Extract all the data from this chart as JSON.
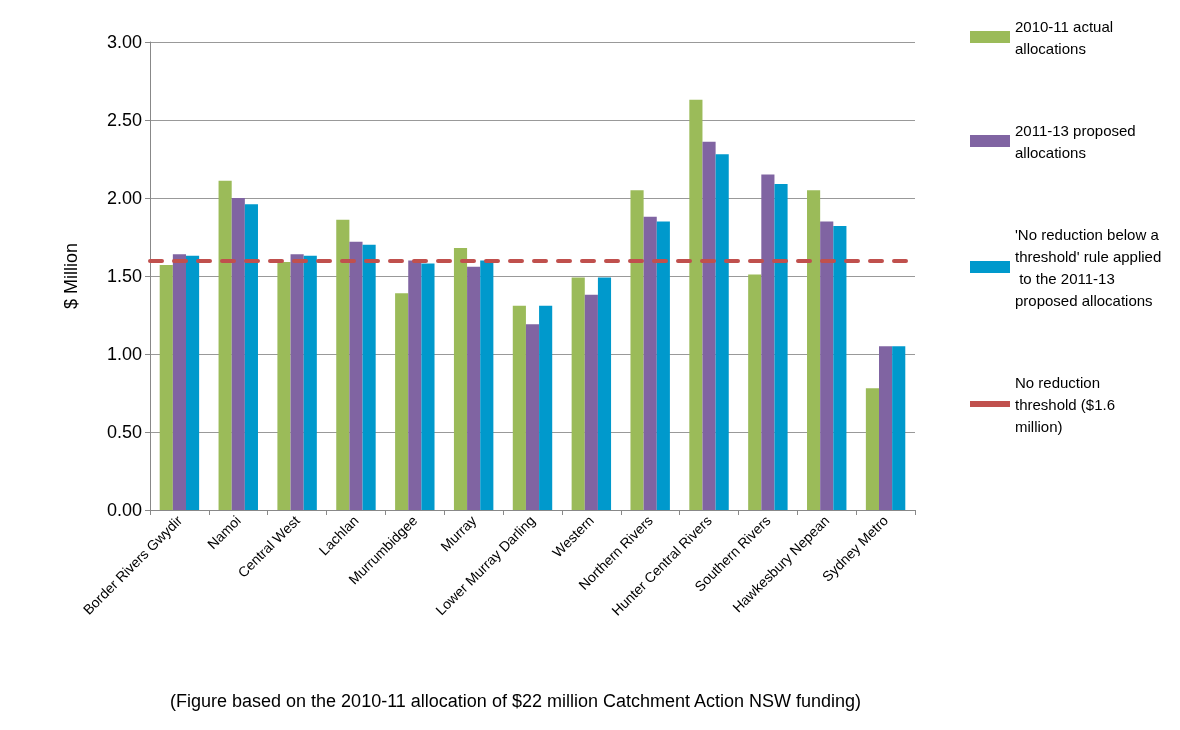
{
  "chart_data": {
    "type": "bar",
    "ylabel": "$ Million",
    "categories": [
      "Border Rivers Gwydir",
      "Namoi",
      "Central West",
      "Lachlan",
      "Murrumbidgee",
      "Murray",
      "Lower Murray Darling",
      "Western",
      "Northern Rivers",
      "Hunter Central Rivers",
      "Southern Rivers",
      "Hawkesbury Nepean",
      "Sydney Metro"
    ],
    "series": [
      {
        "name": "2010-11 actual allocations",
        "color": "#9bbb59",
        "values": [
          1.57,
          2.11,
          1.59,
          1.86,
          1.39,
          1.68,
          1.31,
          1.49,
          2.05,
          2.63,
          1.51,
          2.05,
          0.78
        ]
      },
      {
        "name": "2011-13 proposed allocations",
        "color": "#8064a2",
        "values": [
          1.64,
          2.0,
          1.64,
          1.72,
          1.6,
          1.56,
          1.19,
          1.38,
          1.88,
          2.36,
          2.15,
          1.85,
          1.05
        ]
      },
      {
        "name": "'No reduction below a threshold' rule applied to the 2011-13 proposed allocations",
        "color": "#0099cc",
        "values": [
          1.63,
          1.96,
          1.63,
          1.7,
          1.58,
          1.6,
          1.31,
          1.49,
          1.85,
          2.28,
          2.09,
          1.82,
          1.05
        ]
      }
    ],
    "ref_lines": [
      {
        "axis": "y",
        "value": 1.6,
        "label": "No reduction threshold ($1.6 million)",
        "color": "#c0504d",
        "line_style": "dashed"
      }
    ],
    "ylim": [
      0,
      3
    ],
    "yticks": [
      {
        "value": 0,
        "label": "0.00"
      },
      {
        "value": 0.5,
        "label": "0.50"
      },
      {
        "value": 1,
        "label": "1.00"
      },
      {
        "value": 1.5,
        "label": "1.50"
      },
      {
        "value": 2,
        "label": "2.00"
      },
      {
        "value": 2.5,
        "label": "2.50"
      },
      {
        "value": 3,
        "label": "3.00"
      }
    ],
    "grid": "y",
    "legend": "right",
    "annotations": [
      "(Figure based on the 2010-11 allocation of $22 million Catchment Action NSW funding)"
    ]
  }
}
